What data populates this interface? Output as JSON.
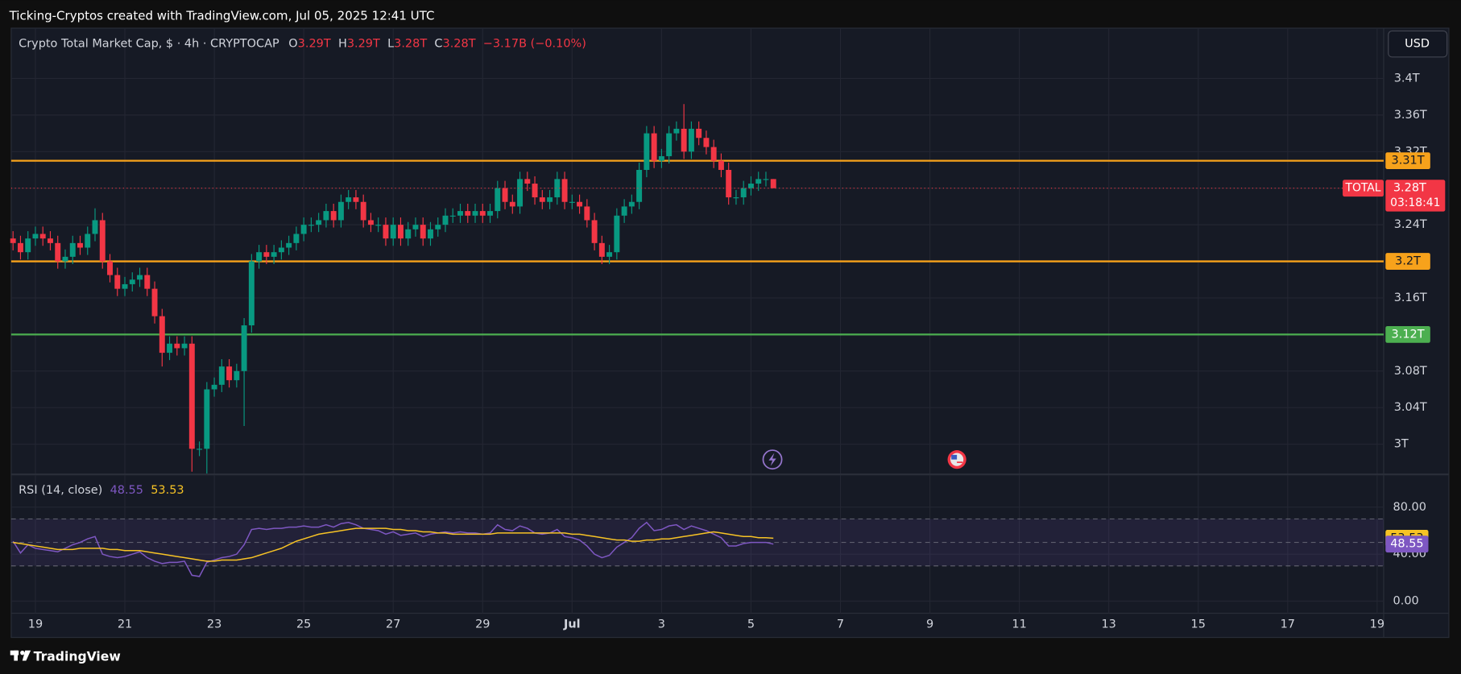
{
  "caption": "Ticking-Cryptos created with TradingView.com, Jul 05, 2025 12:41 UTC",
  "currency": "USD",
  "footer": "TradingView",
  "chart_data": [
    {
      "type": "candlestick",
      "title": "Crypto Total Market Cap, $ · 4h · CRYPTOCAP",
      "ohlc_legend": [
        {
          "key": "O",
          "text": "3.29T"
        },
        {
          "key": "H",
          "text": "3.29T"
        },
        {
          "key": "L",
          "text": "3.28T"
        },
        {
          "key": "C",
          "text": "3.28T"
        }
      ],
      "change": "−3.17B (−0.10%)",
      "categories": [
        null,
        null,
        null,
        null,
        null,
        null,
        null,
        null,
        null,
        null,
        null,
        null,
        null,
        null,
        null,
        null,
        null,
        null,
        null,
        null,
        null,
        null,
        null,
        null,
        null,
        null,
        null,
        null,
        null,
        null,
        null,
        null,
        null,
        null,
        null,
        null,
        null,
        null,
        null,
        null,
        null,
        null,
        null,
        null,
        null,
        null,
        null,
        null,
        null,
        null,
        null,
        null,
        null,
        null,
        null,
        null,
        null,
        null,
        null,
        null,
        null,
        null,
        null,
        null,
        null,
        null,
        null,
        null,
        null,
        null,
        null,
        null,
        null,
        null,
        null,
        null,
        null,
        null,
        null,
        null,
        null,
        null,
        null,
        null,
        null,
        null,
        null,
        null,
        null,
        null,
        null,
        null,
        null,
        null,
        null,
        null,
        null,
        null,
        null,
        null,
        null,
        null,
        null
      ],
      "open": [
        3.225,
        3.22,
        3.21,
        3.225,
        3.23,
        3.225,
        3.22,
        3.2,
        3.205,
        3.22,
        3.215,
        3.23,
        3.245,
        3.2,
        3.185,
        3.17,
        3.175,
        3.18,
        3.185,
        3.17,
        3.14,
        3.1,
        3.11,
        3.105,
        3.11,
        2.995,
        2.995,
        3.06,
        3.065,
        3.085,
        3.07,
        3.08,
        3.13,
        3.2,
        3.21,
        3.205,
        3.21,
        3.215,
        3.22,
        3.23,
        3.24,
        3.24,
        3.245,
        3.255,
        3.245,
        3.265,
        3.27,
        3.265,
        3.245,
        3.24,
        3.24,
        3.225,
        3.24,
        3.225,
        3.235,
        3.24,
        3.225,
        3.235,
        3.24,
        3.25,
        3.25,
        3.255,
        3.25,
        3.255,
        3.25,
        3.255,
        3.28,
        3.265,
        3.26,
        3.29,
        3.285,
        3.27,
        3.265,
        3.27,
        3.29,
        3.265,
        3.265,
        3.26,
        3.245,
        3.22,
        3.205,
        3.21,
        3.25,
        3.26,
        3.265,
        3.3,
        3.34,
        3.31,
        3.315,
        3.34,
        3.345,
        3.32,
        3.345,
        3.335,
        3.325,
        3.31,
        3.3,
        3.27,
        3.27,
        3.28,
        3.285,
        3.29,
        3.29
      ],
      "high": [
        3.233,
        3.228,
        3.233,
        3.238,
        3.238,
        3.233,
        3.228,
        3.213,
        3.228,
        3.228,
        3.238,
        3.258,
        3.253,
        3.208,
        3.193,
        3.183,
        3.188,
        3.193,
        3.193,
        3.178,
        3.148,
        3.118,
        3.118,
        3.118,
        3.118,
        3.003,
        3.068,
        3.073,
        3.093,
        3.093,
        3.088,
        3.138,
        3.208,
        3.218,
        3.218,
        3.218,
        3.223,
        3.228,
        3.238,
        3.248,
        3.248,
        3.253,
        3.263,
        3.263,
        3.273,
        3.278,
        3.278,
        3.273,
        3.253,
        3.248,
        3.248,
        3.248,
        3.248,
        3.243,
        3.248,
        3.248,
        3.243,
        3.248,
        3.258,
        3.258,
        3.263,
        3.263,
        3.263,
        3.263,
        3.263,
        3.288,
        3.288,
        3.273,
        3.298,
        3.298,
        3.293,
        3.278,
        3.278,
        3.298,
        3.298,
        3.273,
        3.273,
        3.268,
        3.253,
        3.228,
        3.218,
        3.258,
        3.268,
        3.273,
        3.308,
        3.348,
        3.348,
        3.323,
        3.348,
        3.353,
        3.372,
        3.353,
        3.353,
        3.343,
        3.333,
        3.318,
        3.308,
        3.278,
        3.288,
        3.293,
        3.298,
        3.298,
        3.29
      ],
      "low": [
        3.212,
        3.202,
        3.202,
        3.217,
        3.217,
        3.212,
        3.192,
        3.192,
        3.197,
        3.207,
        3.207,
        3.222,
        3.192,
        3.177,
        3.162,
        3.162,
        3.167,
        3.172,
        3.162,
        3.132,
        3.085,
        3.092,
        3.097,
        3.097,
        2.97,
        2.987,
        2.968,
        3.052,
        3.057,
        3.062,
        3.062,
        3.02,
        3.122,
        3.192,
        3.197,
        3.197,
        3.202,
        3.207,
        3.212,
        3.222,
        3.232,
        3.232,
        3.237,
        3.237,
        3.237,
        3.257,
        3.257,
        3.237,
        3.232,
        3.232,
        3.217,
        3.217,
        3.217,
        3.217,
        3.227,
        3.217,
        3.217,
        3.227,
        3.232,
        3.242,
        3.242,
        3.242,
        3.242,
        3.242,
        3.242,
        3.247,
        3.257,
        3.252,
        3.252,
        3.277,
        3.262,
        3.257,
        3.257,
        3.262,
        3.257,
        3.257,
        3.252,
        3.237,
        3.212,
        3.197,
        3.197,
        3.202,
        3.242,
        3.252,
        3.257,
        3.292,
        3.302,
        3.302,
        3.307,
        3.332,
        3.312,
        3.312,
        3.327,
        3.317,
        3.302,
        3.292,
        3.262,
        3.262,
        3.262,
        3.272,
        3.277,
        3.282,
        3.28
      ],
      "close": [
        3.22,
        3.21,
        3.225,
        3.23,
        3.225,
        3.22,
        3.2,
        3.205,
        3.22,
        3.215,
        3.23,
        3.245,
        3.2,
        3.185,
        3.17,
        3.175,
        3.18,
        3.185,
        3.17,
        3.14,
        3.1,
        3.11,
        3.105,
        3.11,
        2.995,
        2.995,
        3.06,
        3.065,
        3.085,
        3.07,
        3.08,
        3.13,
        3.2,
        3.21,
        3.205,
        3.21,
        3.215,
        3.22,
        3.23,
        3.24,
        3.24,
        3.245,
        3.255,
        3.245,
        3.265,
        3.27,
        3.265,
        3.245,
        3.24,
        3.24,
        3.225,
        3.24,
        3.225,
        3.235,
        3.24,
        3.225,
        3.235,
        3.24,
        3.25,
        3.25,
        3.255,
        3.25,
        3.255,
        3.25,
        3.255,
        3.28,
        3.265,
        3.26,
        3.29,
        3.285,
        3.27,
        3.265,
        3.27,
        3.29,
        3.265,
        3.265,
        3.26,
        3.245,
        3.22,
        3.205,
        3.21,
        3.25,
        3.26,
        3.265,
        3.3,
        3.34,
        3.31,
        3.315,
        3.34,
        3.345,
        3.32,
        3.345,
        3.335,
        3.325,
        3.31,
        3.3,
        3.27,
        3.27,
        3.28,
        3.285,
        3.29,
        3.29,
        3.28
      ],
      "up_color": "#089981",
      "down_color": "#f23645",
      "ylim": [
        2.968,
        3.455
      ],
      "yticks": [
        {
          "value": 3,
          "label": "3T"
        },
        {
          "value": 3.04,
          "label": "3.04T"
        },
        {
          "value": 3.08,
          "label": "3.08T"
        },
        {
          "value": 3.12,
          "label": "3.12T"
        },
        {
          "value": 3.16,
          "label": "3.16T"
        },
        {
          "value": 3.2,
          "label": "3.2T"
        },
        {
          "value": 3.24,
          "label": "3.24T"
        },
        {
          "value": 3.28,
          "label": "3.28T"
        },
        {
          "value": 3.32,
          "label": "3.32T"
        },
        {
          "value": 3.36,
          "label": "3.36T"
        },
        {
          "value": 3.4,
          "label": "3.4T"
        }
      ],
      "grid": true,
      "levels": [
        {
          "value": 3.31,
          "label": "3.31T",
          "color": "#f7a21b"
        },
        {
          "value": 3.2,
          "label": "3.2T",
          "color": "#f7a21b"
        },
        {
          "value": 3.12,
          "label": "3.12T",
          "color": "#4caf50"
        }
      ],
      "price_tag": {
        "name": "TOTAL",
        "value": 3.28,
        "label": "3.28T",
        "countdown": "03:18:41",
        "color": "#f23645"
      }
    },
    {
      "type": "line",
      "title": "RSI (14, close)",
      "xlim": [
        -0.25,
        183.875
      ],
      "xticks": [
        {
          "value": 3,
          "label": "19"
        },
        {
          "value": 15,
          "label": "21"
        },
        {
          "value": 27,
          "label": "23"
        },
        {
          "value": 39,
          "label": "25"
        },
        {
          "value": 51,
          "label": "27"
        },
        {
          "value": 63,
          "label": "29"
        },
        {
          "value": 75,
          "label": "Jul"
        },
        {
          "value": 87,
          "label": "3"
        },
        {
          "value": 99,
          "label": "5"
        },
        {
          "value": 111,
          "label": "7"
        },
        {
          "value": 123,
          "label": "9"
        },
        {
          "value": 135,
          "label": "11"
        },
        {
          "value": 147,
          "label": "13"
        },
        {
          "value": 159,
          "label": "15"
        },
        {
          "value": 171,
          "label": "17"
        },
        {
          "value": 183,
          "label": "19"
        }
      ],
      "ylim": [
        -10.3,
        107.1
      ],
      "yticks": [
        {
          "value": 0,
          "label": "0.00"
        },
        {
          "value": 40,
          "label": "40.00"
        },
        {
          "value": 80,
          "label": "80.00"
        }
      ],
      "bands": [
        30,
        50,
        70
      ],
      "band_color": "#7e57c2",
      "grid": true,
      "series": [
        {
          "color": "#7e57c2",
          "values": [
            51,
            41,
            48,
            45,
            44,
            43,
            42,
            45,
            48,
            50,
            53,
            55,
            40,
            38,
            37,
            38,
            40,
            42,
            37,
            34,
            32,
            33,
            33,
            34,
            22,
            21,
            33,
            35,
            37,
            38,
            40,
            48,
            61,
            62,
            61,
            62,
            62,
            63,
            63,
            64,
            63,
            63,
            65,
            63,
            66,
            67,
            65,
            62,
            61,
            60,
            57,
            59,
            56,
            57,
            58,
            55,
            57,
            58,
            59,
            58,
            59,
            58,
            58,
            57,
            58,
            65,
            61,
            60,
            64,
            62,
            58,
            57,
            58,
            61,
            55,
            54,
            52,
            47,
            40,
            37,
            39,
            46,
            50,
            54,
            62,
            67,
            60,
            61,
            64,
            65,
            61,
            64,
            62,
            60,
            57,
            54,
            47,
            47,
            49,
            50,
            50,
            50,
            48.55
          ]
        },
        {
          "color": "#f7c325",
          "values": [
            50,
            49,
            48,
            47,
            46,
            45,
            44,
            44,
            44,
            45,
            45,
            45,
            45,
            44,
            44,
            43,
            43,
            43,
            42,
            41,
            40,
            39,
            38,
            37,
            36,
            35,
            34,
            34,
            35,
            35,
            35,
            36,
            37,
            39,
            41,
            43,
            45,
            48,
            51,
            53,
            55,
            57,
            58,
            59,
            60,
            61,
            62,
            62,
            62,
            62,
            62,
            61,
            61,
            60,
            60,
            59,
            59,
            58,
            58,
            57,
            57,
            57,
            57,
            57,
            57,
            58,
            58,
            58,
            58,
            58,
            58,
            58,
            58,
            58,
            58,
            57,
            57,
            56,
            55,
            54,
            53,
            52,
            52,
            51,
            51,
            52,
            52,
            53,
            53,
            54,
            55,
            56,
            57,
            58,
            59,
            58,
            57,
            56,
            55,
            55,
            54,
            54,
            53.53
          ]
        }
      ]
    }
  ]
}
